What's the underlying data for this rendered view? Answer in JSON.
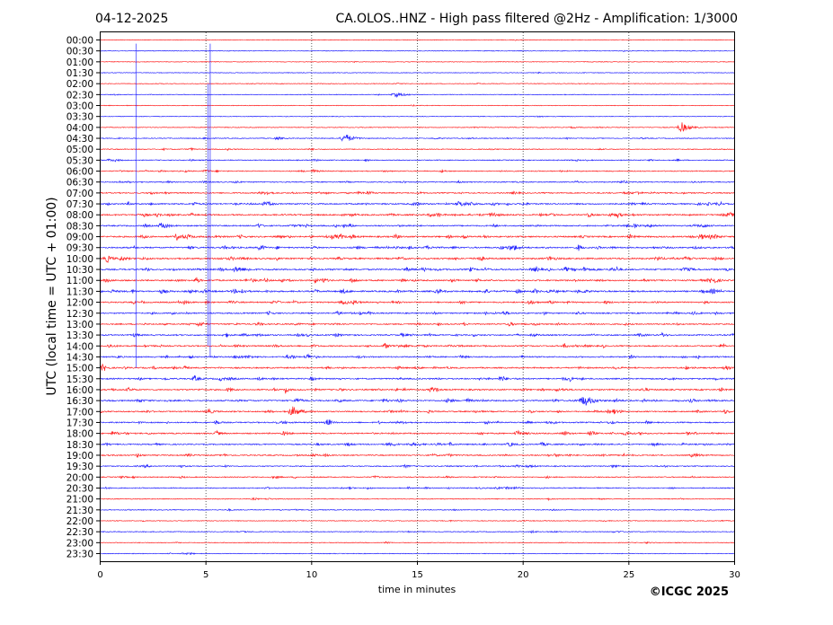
{
  "chart_data": {
    "type": "line",
    "title_left": "04-12-2025",
    "title_right": "CA.OLOS..HNZ - High pass filtered @2Hz - Amplification: 1/3000",
    "xlabel": "time in minutes",
    "ylabel": "UTC (local time = UTC + 01:00)",
    "xlim": [
      0,
      30
    ],
    "xticks": [
      "0",
      "5",
      "10",
      "15",
      "20",
      "25",
      "30"
    ],
    "grid": "vertical dotted at 5-minute intervals",
    "colors": {
      "hour_rows": "#ff0000",
      "half_hour_rows": "#0000ff"
    },
    "rows": [
      "00:00",
      "00:30",
      "01:00",
      "01:30",
      "02:00",
      "02:30",
      "03:00",
      "03:30",
      "04:00",
      "04:30",
      "05:00",
      "05:30",
      "06:00",
      "06:30",
      "07:00",
      "07:30",
      "08:00",
      "08:30",
      "09:00",
      "09:30",
      "10:00",
      "10:30",
      "11:00",
      "11:30",
      "12:00",
      "12:30",
      "13:00",
      "13:30",
      "14:00",
      "14:30",
      "15:00",
      "15:30",
      "16:00",
      "16:30",
      "17:00",
      "17:30",
      "18:00",
      "18:30",
      "19:00",
      "19:30",
      "20:00",
      "20:30",
      "21:00",
      "21:30",
      "22:00",
      "22:30",
      "23:00",
      "23:30"
    ],
    "activity": [
      0.03,
      0.03,
      0.03,
      0.04,
      0.05,
      0.04,
      0.03,
      0.03,
      0.12,
      0.2,
      0.2,
      0.25,
      0.3,
      0.3,
      0.45,
      0.6,
      0.65,
      0.55,
      0.7,
      0.65,
      0.7,
      0.7,
      0.65,
      0.7,
      0.55,
      0.5,
      0.5,
      0.5,
      0.55,
      0.5,
      0.55,
      0.6,
      0.6,
      0.6,
      0.5,
      0.5,
      0.55,
      0.5,
      0.45,
      0.35,
      0.3,
      0.3,
      0.15,
      0.15,
      0.12,
      0.15,
      0.1,
      0.08
    ],
    "events": [
      {
        "row": "04:00",
        "minute": 27.5,
        "amplitude": 5
      },
      {
        "row": "04:30",
        "minute": 11.6,
        "amplitude": 5
      },
      {
        "row": "16:30",
        "minute": 22.9,
        "amplitude": 6
      },
      {
        "row": "17:00",
        "minute": 9.1,
        "amplitude": 5
      },
      {
        "row": "02:30",
        "minute": 14.0,
        "amplitude": 3
      }
    ],
    "spikes": [
      {
        "minute": 1.7,
        "from_row": "00:30",
        "to_row": "15:00"
      },
      {
        "minute": 5.1,
        "from_row": "02:00",
        "to_row": "14:00"
      },
      {
        "minute": 5.2,
        "from_row": "00:30",
        "to_row": "14:30"
      }
    ],
    "copyright": "©ICGC 2025"
  }
}
